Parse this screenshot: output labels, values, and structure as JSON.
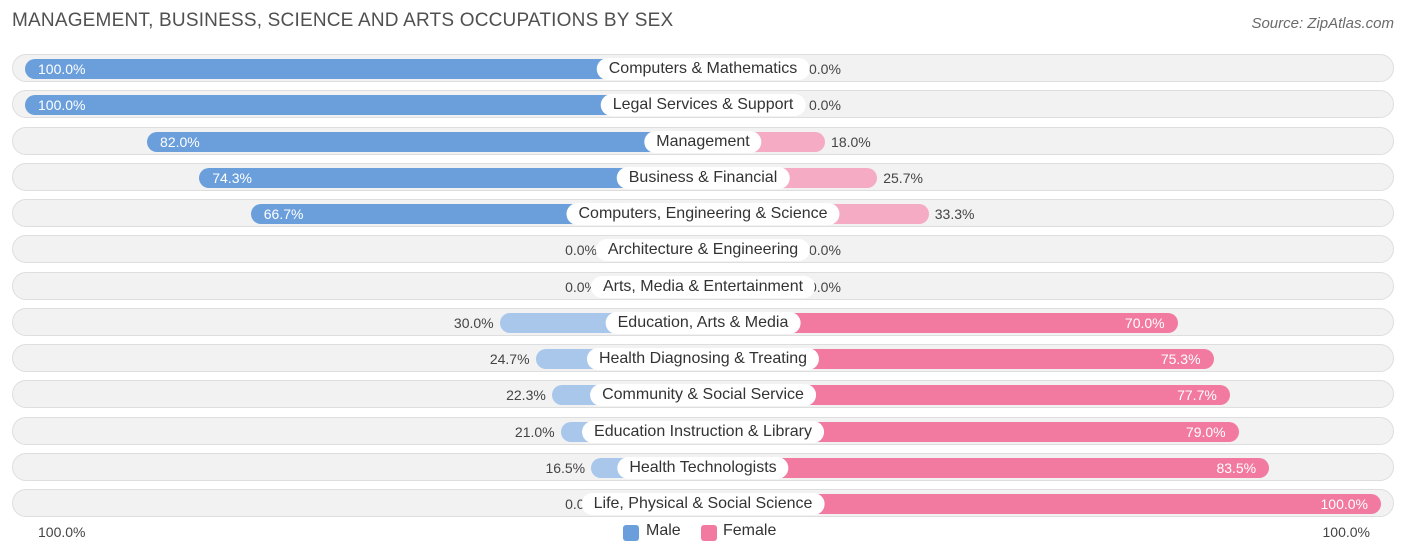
{
  "title": "MANAGEMENT, BUSINESS, SCIENCE AND ARTS OCCUPATIONS BY SEX",
  "source": "Source: ZipAtlas.com",
  "legend": {
    "male_label": "Male",
    "female_label": "Female"
  },
  "axis": {
    "left_label": "100.0%",
    "right_label": "100.0%"
  },
  "colors": {
    "male": "#6a9fdc",
    "male_light": "#a8c7ea",
    "female": "#f27aa0",
    "female_light": "#f6abc4"
  },
  "chart_data": {
    "type": "bar",
    "orientation": "horizontal-diverging",
    "title": "MANAGEMENT, BUSINESS, SCIENCE AND ARTS OCCUPATIONS BY SEX",
    "categories": [
      "Computers & Mathematics",
      "Legal Services & Support",
      "Management",
      "Business & Financial",
      "Computers, Engineering & Science",
      "Architecture & Engineering",
      "Arts, Media & Entertainment",
      "Education, Arts & Media",
      "Health Diagnosing & Treating",
      "Community & Social Service",
      "Education Instruction & Library",
      "Health Technologists",
      "Life, Physical & Social Science"
    ],
    "series": [
      {
        "name": "Male",
        "values": [
          100.0,
          100.0,
          82.0,
          74.3,
          66.7,
          0.0,
          0.0,
          30.0,
          24.7,
          22.3,
          21.0,
          16.5,
          0.0
        ],
        "labels": [
          "100.0%",
          "100.0%",
          "82.0%",
          "74.3%",
          "66.7%",
          "0.0%",
          "0.0%",
          "30.0%",
          "24.7%",
          "22.3%",
          "21.0%",
          "16.5%",
          "0.0%"
        ]
      },
      {
        "name": "Female",
        "values": [
          0.0,
          0.0,
          18.0,
          25.7,
          33.3,
          0.0,
          0.0,
          70.0,
          75.3,
          77.7,
          79.0,
          83.5,
          100.0
        ],
        "labels": [
          "0.0%",
          "0.0%",
          "18.0%",
          "25.7%",
          "33.3%",
          "0.0%",
          "0.0%",
          "70.0%",
          "75.3%",
          "77.7%",
          "79.0%",
          "83.5%",
          "100.0%"
        ]
      }
    ],
    "xlim": [
      -100,
      100
    ],
    "legend_position": "bottom-center"
  }
}
